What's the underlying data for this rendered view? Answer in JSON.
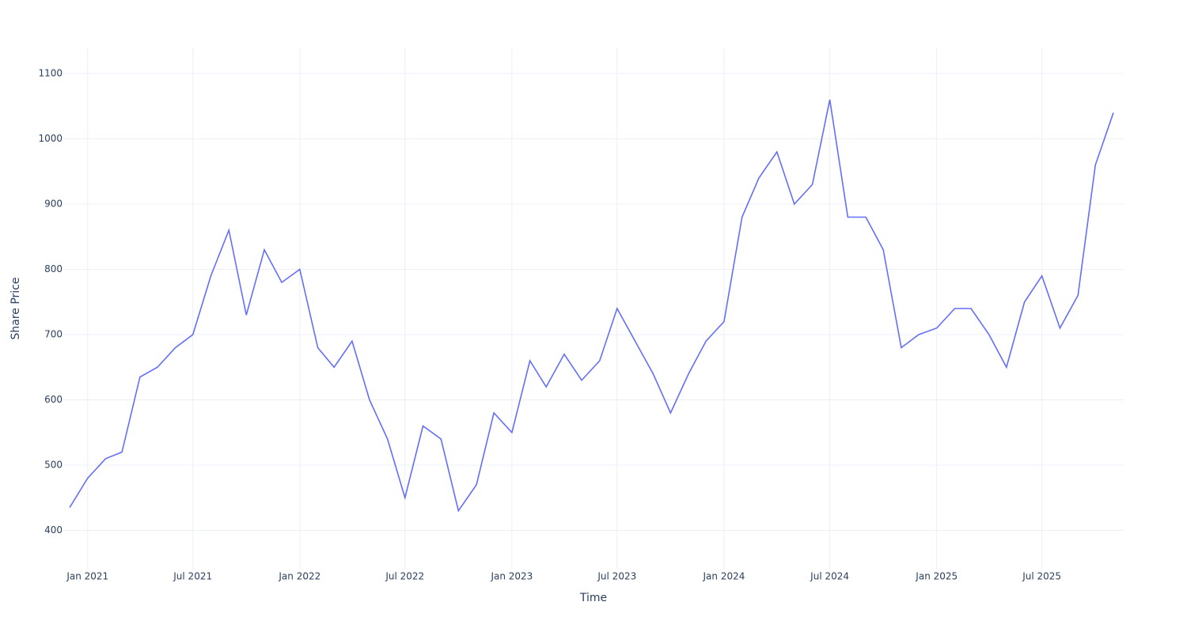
{
  "chart_data": {
    "type": "line",
    "x_label": "Time",
    "y_label": "Share Price",
    "x": [
      "2020-12",
      "2021-01",
      "2021-02",
      "2021-03",
      "2021-04",
      "2021-05",
      "2021-06",
      "2021-07",
      "2021-08",
      "2021-09",
      "2021-10",
      "2021-11",
      "2021-12",
      "2022-01",
      "2022-02",
      "2022-03",
      "2022-04",
      "2022-05",
      "2022-06",
      "2022-07",
      "2022-08",
      "2022-09",
      "2022-10",
      "2022-11",
      "2022-12",
      "2023-01",
      "2023-02",
      "2023-03",
      "2023-04",
      "2023-05",
      "2023-06",
      "2023-07",
      "2023-08",
      "2023-09",
      "2023-10",
      "2023-11",
      "2023-12",
      "2024-01",
      "2024-02",
      "2024-03",
      "2024-04",
      "2024-05",
      "2024-06",
      "2024-07",
      "2024-08",
      "2024-09",
      "2024-10",
      "2024-11",
      "2024-12",
      "2025-01",
      "2025-02",
      "2025-03",
      "2025-04",
      "2025-05",
      "2025-06",
      "2025-07",
      "2025-08",
      "2025-09",
      "2025-10",
      "2025-11"
    ],
    "series": [
      {
        "name": "Share Price",
        "color": "#636efa",
        "values": [
          435,
          480,
          510,
          520,
          635,
          650,
          680,
          700,
          790,
          860,
          730,
          830,
          780,
          800,
          680,
          650,
          690,
          600,
          540,
          450,
          560,
          540,
          430,
          470,
          580,
          550,
          660,
          620,
          670,
          630,
          660,
          740,
          690,
          640,
          580,
          640,
          690,
          720,
          880,
          940,
          980,
          900,
          930,
          1060,
          880,
          880,
          830,
          680,
          700,
          710,
          740,
          740,
          700,
          650,
          750,
          790,
          710,
          760,
          960,
          1040
        ]
      }
    ],
    "xlim": [
      "2020-12",
      "2025-11"
    ],
    "ylim": [
      340,
      1140
    ],
    "yticks": [
      400,
      500,
      600,
      700,
      800,
      900,
      1000,
      1100
    ],
    "xticks": [
      {
        "value": "2021-01",
        "label": "Jan 2021"
      },
      {
        "value": "2021-07",
        "label": "Jul 2021"
      },
      {
        "value": "2022-01",
        "label": "Jan 2022"
      },
      {
        "value": "2022-07",
        "label": "Jul 2022"
      },
      {
        "value": "2023-01",
        "label": "Jan 2023"
      },
      {
        "value": "2023-07",
        "label": "Jul 2023"
      },
      {
        "value": "2024-01",
        "label": "Jan 2024"
      },
      {
        "value": "2024-07",
        "label": "Jul 2024"
      },
      {
        "value": "2025-01",
        "label": "Jan 2025"
      },
      {
        "value": "2025-07",
        "label": "Jul 2025"
      }
    ],
    "grid": true
  }
}
